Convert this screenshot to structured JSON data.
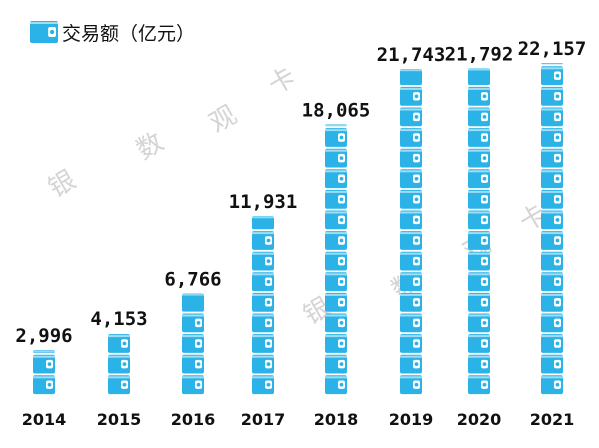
{
  "chart_data": {
    "type": "bar",
    "title": "",
    "legend": {
      "label": "交易额（亿元）",
      "icon": "wallet-icon",
      "placement": "top-left"
    },
    "categories": [
      "2014",
      "2015",
      "2016",
      "2017",
      "2018",
      "2019",
      "2020",
      "2021"
    ],
    "series": [
      {
        "name": "交易额（亿元）",
        "values": [
          2996,
          4153,
          6766,
          11931,
          18065,
          21743,
          21792,
          22157
        ]
      }
    ],
    "data_labels": [
      "2,996",
      "4,153",
      "6,766",
      "11,931",
      "18,065",
      "21,743",
      "21,792",
      "22,157"
    ],
    "ylim": [
      0,
      22157
    ],
    "grid": false,
    "bar_style": "stacked wallet icons"
  },
  "watermark": {
    "chars": [
      "银",
      "数",
      "观",
      "卡"
    ]
  },
  "colors": {
    "bar": "#2bb3e8",
    "bar_dark": "#1a8fc4",
    "text": "#111111",
    "watermark": "#d4d4d4"
  }
}
